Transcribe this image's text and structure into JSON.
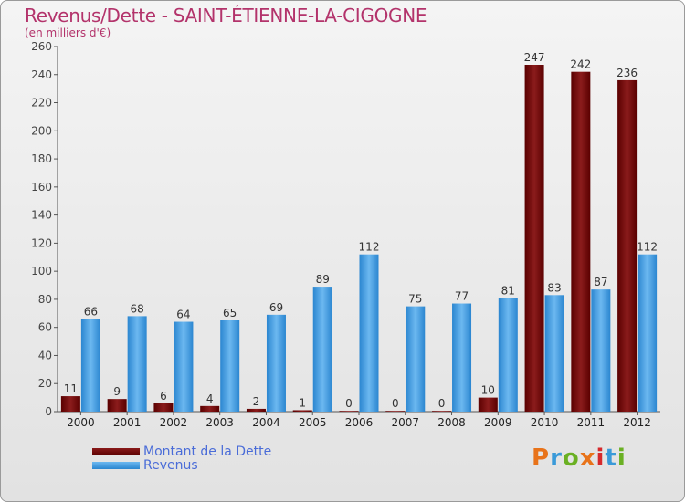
{
  "colors": {
    "debt_top": "#8b1c1c",
    "debt_bottom": "#5a0000",
    "rev_top": "#6cb8f0",
    "rev_bottom": "#2b86d0",
    "title": "#b3336b",
    "legend_text": "#4a6cd8"
  },
  "header": {
    "title": "Revenus/Dette - SAINT-ÉTIENNE-LA-CIGOGNE",
    "subtitle": "(en milliers d'€)"
  },
  "legend": {
    "debt_label": "Montant de la Dette",
    "revenue_label": "Revenus"
  },
  "logo": {
    "text": "Proxiti"
  },
  "chart_data": {
    "type": "bar",
    "title": "Revenus/Dette - SAINT-ÉTIENNE-LA-CIGOGNE",
    "ylabel": "(en milliers d'€)",
    "xlabel": "",
    "ylim": [
      0,
      260
    ],
    "yticks": [
      0,
      20,
      40,
      60,
      80,
      100,
      120,
      140,
      160,
      180,
      200,
      220,
      240,
      260
    ],
    "grid": false,
    "legend_position": "bottom-left",
    "categories": [
      "2000",
      "2001",
      "2002",
      "2003",
      "2004",
      "2005",
      "2006",
      "2007",
      "2008",
      "2009",
      "2010",
      "2011",
      "2012"
    ],
    "series": [
      {
        "name": "Montant de la Dette",
        "values": [
          11,
          9,
          6,
          4,
          2,
          1,
          0,
          0,
          0,
          10,
          247,
          242,
          236
        ]
      },
      {
        "name": "Revenus",
        "values": [
          66,
          68,
          64,
          65,
          69,
          89,
          112,
          75,
          77,
          81,
          83,
          87,
          112
        ]
      }
    ]
  }
}
